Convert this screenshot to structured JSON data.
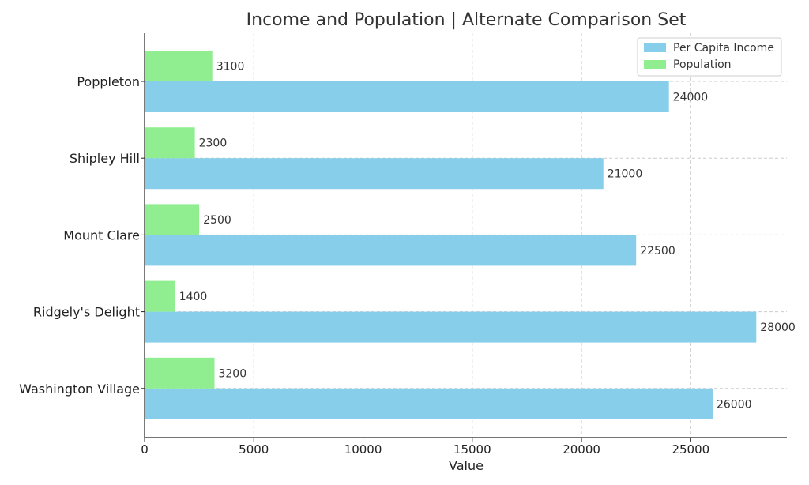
{
  "chart_data": {
    "type": "bar",
    "orientation": "horizontal",
    "title": "Income and Population | Alternate Comparison Set",
    "xlabel": "Value",
    "ylabel": "",
    "xlim": [
      0,
      29400
    ],
    "xticks": [
      0,
      5000,
      10000,
      15000,
      20000,
      25000
    ],
    "grid": true,
    "legend_position": "top-right",
    "categories": [
      "Poppleton",
      "Shipley Hill",
      "Mount Clare",
      "Ridgely's Delight",
      "Washington Village"
    ],
    "series": [
      {
        "name": "Per Capita Income",
        "color": "#87ceeb",
        "values": [
          24000,
          21000,
          22500,
          28000,
          26000
        ]
      },
      {
        "name": "Population",
        "color": "#90ee90",
        "values": [
          3100,
          2300,
          2500,
          1400,
          3200
        ]
      }
    ]
  }
}
